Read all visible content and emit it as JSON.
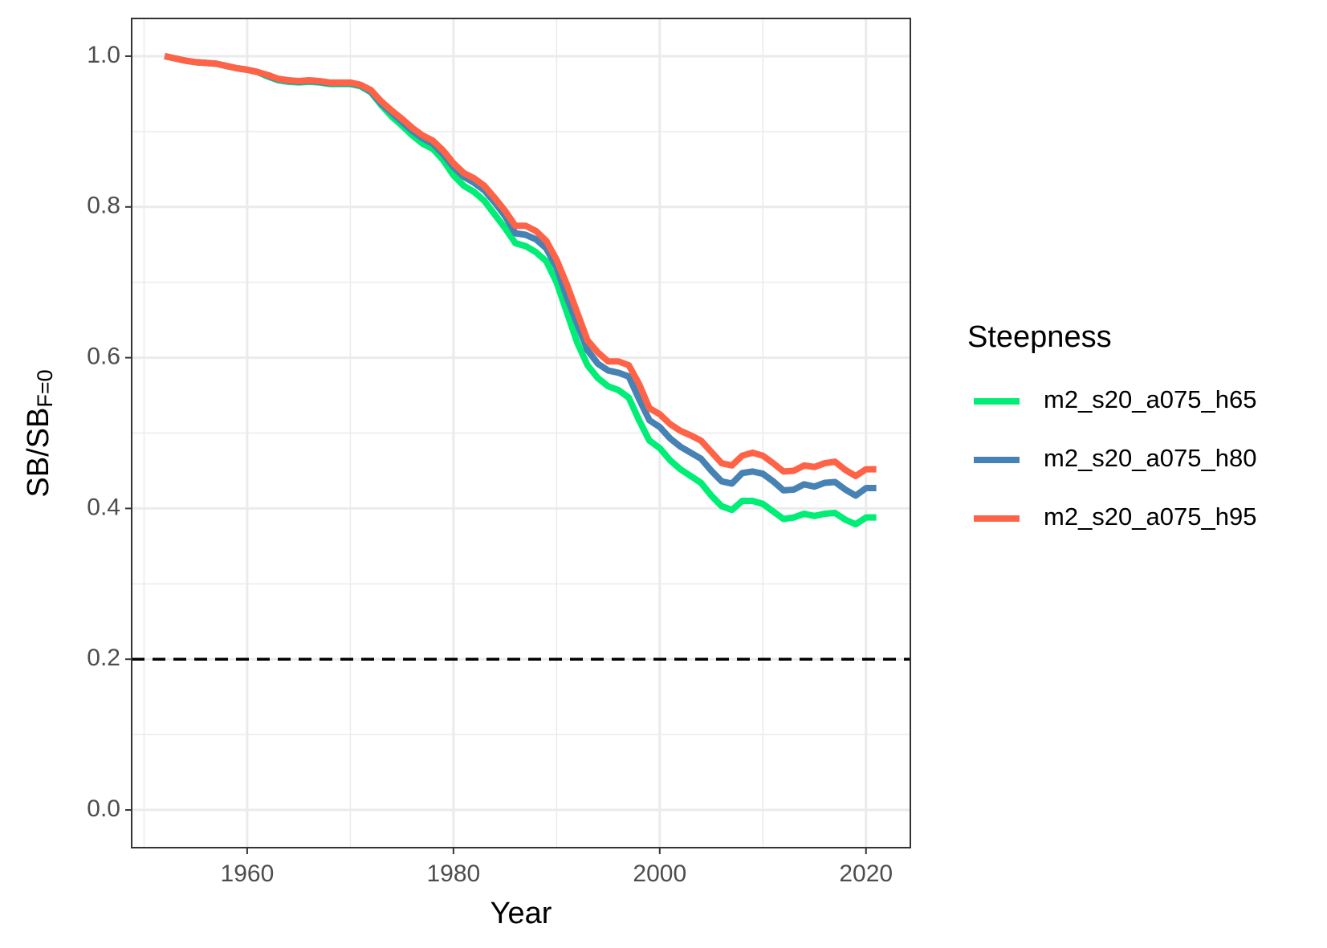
{
  "chart_data": {
    "type": "line",
    "xlabel": "Year",
    "ylabel": "SB/SB",
    "ylabel_subscript": "F=0",
    "legend_title": "Steepness",
    "legend": "right",
    "x": [
      1952,
      1953,
      1954,
      1955,
      1956,
      1957,
      1958,
      1959,
      1960,
      1961,
      1962,
      1963,
      1964,
      1965,
      1966,
      1967,
      1968,
      1969,
      1970,
      1971,
      1972,
      1973,
      1974,
      1975,
      1976,
      1977,
      1978,
      1979,
      1980,
      1981,
      1982,
      1983,
      1984,
      1985,
      1986,
      1987,
      1988,
      1989,
      1990,
      1991,
      1992,
      1993,
      1994,
      1995,
      1996,
      1997,
      1998,
      1999,
      2000,
      2001,
      2002,
      2003,
      2004,
      2005,
      2006,
      2007,
      2008,
      2009,
      2010,
      2011,
      2012,
      2013,
      2014,
      2015,
      2016,
      2017,
      2018,
      2019,
      2020,
      2021
    ],
    "series": [
      {
        "name": "m2_s20_a075_h65",
        "color": "#00EE76",
        "values": [
          1.0,
          0.997,
          0.994,
          0.992,
          0.991,
          0.99,
          0.987,
          0.984,
          0.982,
          0.979,
          0.973,
          0.968,
          0.966,
          0.965,
          0.966,
          0.965,
          0.963,
          0.963,
          0.963,
          0.96,
          0.952,
          0.935,
          0.92,
          0.908,
          0.895,
          0.884,
          0.877,
          0.862,
          0.842,
          0.828,
          0.82,
          0.808,
          0.79,
          0.772,
          0.752,
          0.748,
          0.74,
          0.728,
          0.7,
          0.66,
          0.62,
          0.59,
          0.573,
          0.562,
          0.557,
          0.547,
          0.517,
          0.49,
          0.48,
          0.464,
          0.452,
          0.443,
          0.434,
          0.417,
          0.403,
          0.398,
          0.41,
          0.41,
          0.406,
          0.396,
          0.386,
          0.388,
          0.393,
          0.39,
          0.393,
          0.394,
          0.385,
          0.379,
          0.388,
          0.388
        ]
      },
      {
        "name": "m2_s20_a075_h80",
        "color": "#4682B4",
        "values": [
          1.0,
          0.997,
          0.994,
          0.992,
          0.991,
          0.99,
          0.987,
          0.984,
          0.982,
          0.979,
          0.974,
          0.969,
          0.967,
          0.966,
          0.967,
          0.966,
          0.964,
          0.964,
          0.964,
          0.961,
          0.953,
          0.937,
          0.925,
          0.913,
          0.901,
          0.891,
          0.884,
          0.87,
          0.853,
          0.84,
          0.832,
          0.822,
          0.806,
          0.788,
          0.765,
          0.763,
          0.757,
          0.745,
          0.72,
          0.68,
          0.645,
          0.61,
          0.592,
          0.583,
          0.58,
          0.575,
          0.545,
          0.517,
          0.508,
          0.493,
          0.482,
          0.474,
          0.466,
          0.45,
          0.436,
          0.433,
          0.447,
          0.449,
          0.446,
          0.436,
          0.424,
          0.425,
          0.432,
          0.429,
          0.434,
          0.435,
          0.425,
          0.417,
          0.427,
          0.427
        ]
      },
      {
        "name": "m2_s20_a075_h95",
        "color": "#FF6347",
        "values": [
          1.0,
          0.997,
          0.994,
          0.992,
          0.991,
          0.99,
          0.987,
          0.984,
          0.982,
          0.979,
          0.975,
          0.97,
          0.968,
          0.967,
          0.968,
          0.967,
          0.965,
          0.965,
          0.965,
          0.962,
          0.955,
          0.94,
          0.928,
          0.917,
          0.905,
          0.895,
          0.888,
          0.875,
          0.858,
          0.845,
          0.838,
          0.828,
          0.812,
          0.795,
          0.775,
          0.775,
          0.768,
          0.755,
          0.73,
          0.697,
          0.66,
          0.623,
          0.607,
          0.595,
          0.595,
          0.59,
          0.565,
          0.533,
          0.525,
          0.512,
          0.503,
          0.497,
          0.49,
          0.475,
          0.46,
          0.457,
          0.47,
          0.474,
          0.47,
          0.46,
          0.449,
          0.45,
          0.457,
          0.455,
          0.46,
          0.462,
          0.451,
          0.443,
          0.452,
          0.452
        ]
      }
    ],
    "xlim": [
      1948.8,
      2024.3
    ],
    "xticks": [
      1960,
      1980,
      2000,
      2020
    ],
    "x_minor_grid": [
      1950,
      1970,
      1990,
      2010
    ],
    "ylim": [
      -0.05,
      1.05
    ],
    "yticks": [
      {
        "value": 0,
        "label": "0.0"
      },
      0.2,
      0.4,
      0.6,
      0.8,
      {
        "value": 1,
        "label": "1.0"
      }
    ],
    "y_minor_grid": [
      0.1,
      0.3,
      0.5,
      0.7,
      0.9
    ],
    "grid": true,
    "hline": 0.2,
    "hline_color": "#000000"
  }
}
